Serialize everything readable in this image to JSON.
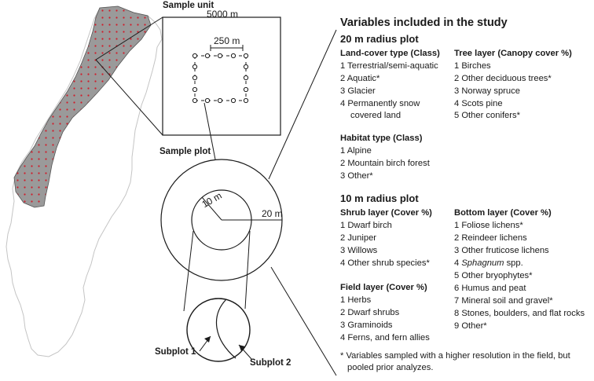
{
  "labels": {
    "sample_unit": "Sample unit",
    "unit_size": "5000 m",
    "plot_spacing": "250 m",
    "sample_plot": "Sample plot",
    "r10": "10 m",
    "r20": "20 m",
    "subplot1": "Subplot 1",
    "subplot2": "Subplot 2"
  },
  "variables": {
    "title": "Variables included in the study",
    "plot20": {
      "heading": "20 m radius plot",
      "landcover": {
        "title": "Land-cover type (Class)",
        "items": [
          "1 Terrestrial/semi-aquatic",
          "2 Aquatic*",
          "3 Glacier",
          "4 Permanently snow",
          "covered land"
        ]
      },
      "tree": {
        "title": "Tree layer (Canopy cover %)",
        "items": [
          "1 Birches",
          "2 Other deciduous trees*",
          "3 Norway spruce",
          "4 Scots pine",
          "5 Other conifers*"
        ]
      },
      "habitat": {
        "title": "Habitat type (Class)",
        "items": [
          "1 Alpine",
          "2 Mountain birch forest",
          "3 Other*"
        ]
      }
    },
    "plot10": {
      "heading": "10 m radius plot",
      "shrub": {
        "title": "Shrub layer (Cover %)",
        "items": [
          "1 Dwarf birch",
          "2 Juniper",
          "3 Willows",
          "4 Other shrub species*"
        ]
      },
      "bottom": {
        "title": "Bottom layer  (Cover %)",
        "items": [
          "1 Foliose lichens*",
          "2 Reindeer lichens",
          "3 Other fruticose lichens",
          "4 ",
          "Sphagnum",
          " spp.",
          "5 Other bryophytes*",
          "6 Humus and peat",
          "7 Mineral soil and gravel*",
          "8 Stones, boulders, and flat rocks",
          "9 Other*"
        ]
      },
      "field": {
        "title": "Field layer  (Cover %)",
        "items": [
          "1 Herbs",
          "2 Dwarf shrubs",
          "3 Graminoids",
          "4 Ferns, and fern allies"
        ]
      }
    },
    "footnote": [
      "* Variables sampled with a higher resolution in the field, but",
      "pooled prior analyzes."
    ]
  },
  "colors": {
    "mountain_fill": "#9a9a9a",
    "sample_dot": "#d01c2a",
    "line": "#1a1a1a"
  }
}
